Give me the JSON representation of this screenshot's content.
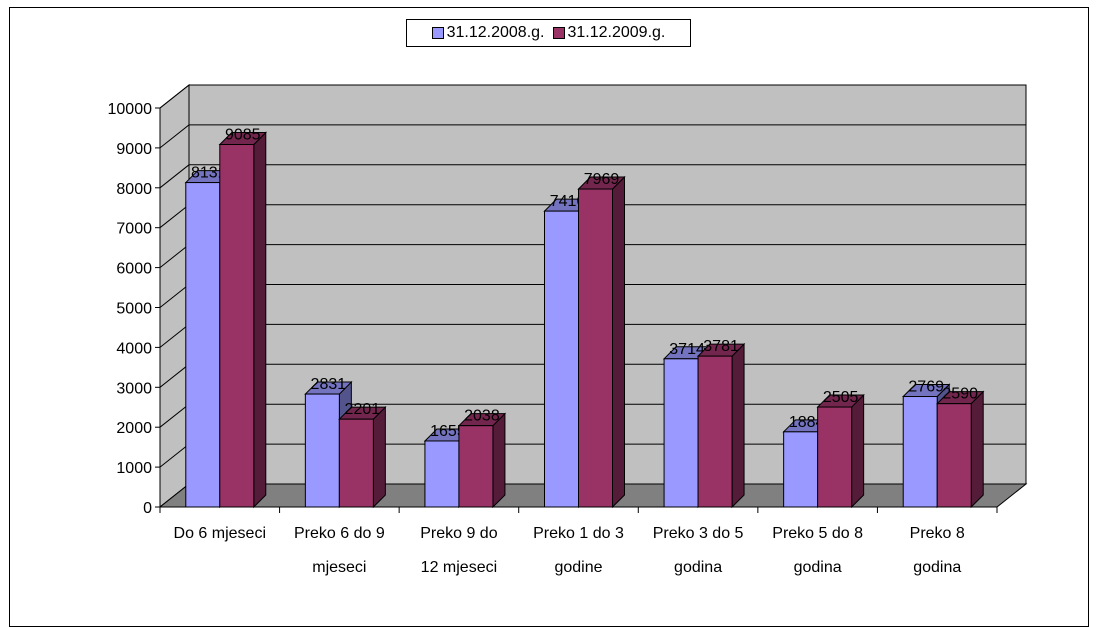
{
  "chart_data": {
    "type": "bar",
    "title": "",
    "xlabel": "",
    "ylabel": "",
    "ylim": [
      0,
      10000
    ],
    "yticks": [
      0,
      1000,
      2000,
      3000,
      4000,
      5000,
      6000,
      7000,
      8000,
      9000,
      10000
    ],
    "grid": true,
    "legend_position": "top",
    "categories": [
      [
        "Do 6 mjeseci"
      ],
      [
        "Preko 6 do 9",
        "mjeseci"
      ],
      [
        "Preko 9 do",
        "12 mjeseci"
      ],
      [
        "Preko 1 do 3",
        "godine"
      ],
      [
        "Preko 3 do 5",
        "godina"
      ],
      [
        "Preko 5 do 8",
        "godina"
      ],
      [
        "Preko 8",
        "godina"
      ]
    ],
    "series": [
      {
        "name": "31.12.2008.g.",
        "color": "#9999ff",
        "values": [
          8131,
          2831,
          1655,
          7416,
          3714,
          1884,
          2769
        ]
      },
      {
        "name": "31.12.2009.g.",
        "color": "#993366",
        "values": [
          9085,
          2201,
          2038,
          7969,
          3781,
          2505,
          2590
        ]
      }
    ]
  }
}
